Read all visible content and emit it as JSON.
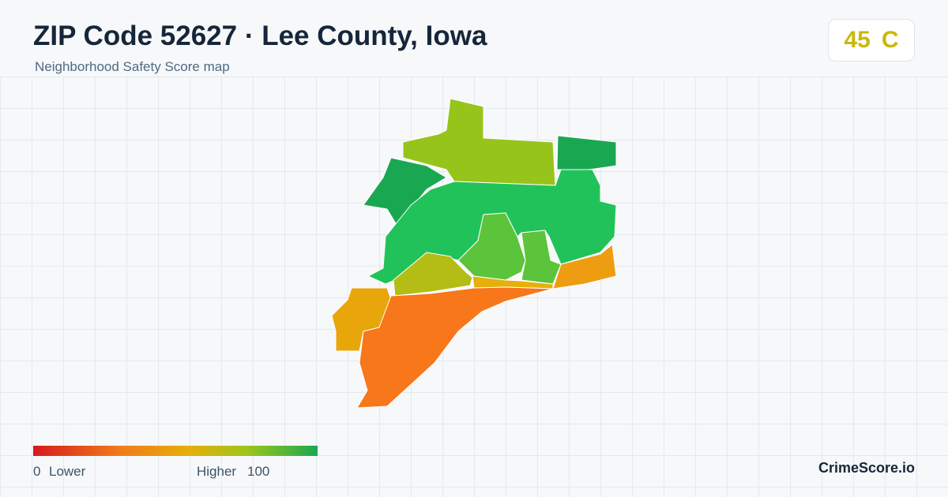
{
  "header": {
    "title": "ZIP Code 52627 · Lee County, Iowa",
    "subtitle": "Neighborhood Safety Score map"
  },
  "score": {
    "value": 45,
    "grade": "C"
  },
  "legend": {
    "min": 0,
    "min_label": "Lower",
    "max_label": "Higher",
    "max": 100
  },
  "brand": "CrimeScore.io"
}
